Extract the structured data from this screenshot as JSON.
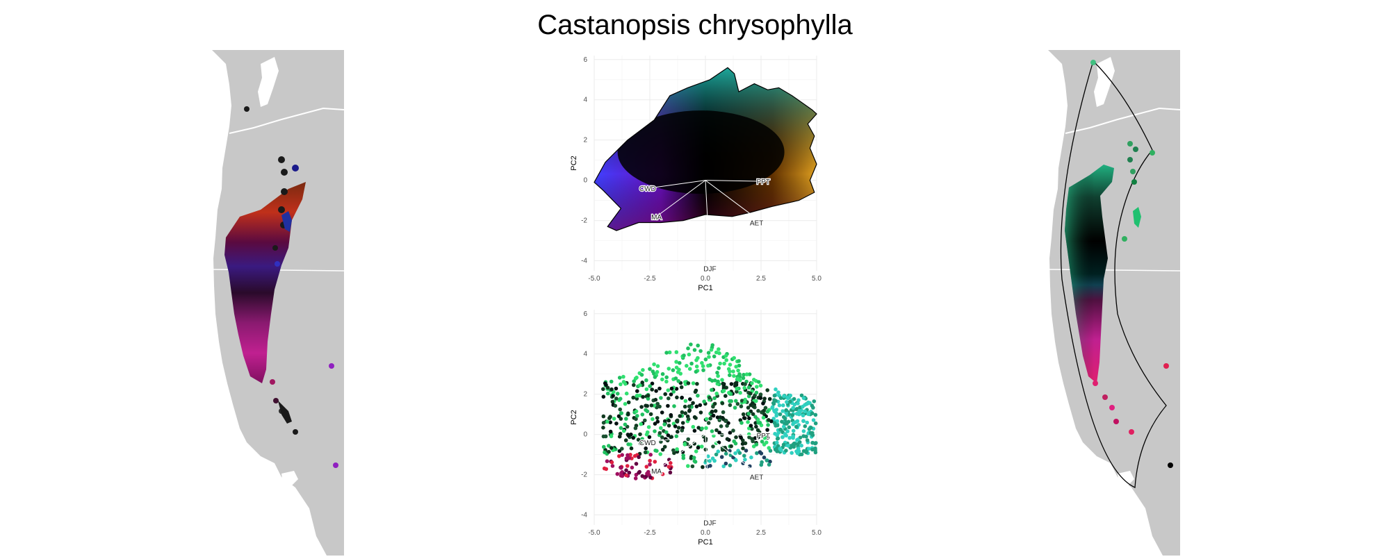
{
  "title": "Castanopsis chrysophylla",
  "colors": {
    "background": "#ffffff",
    "land": "#c8c8c8",
    "water": "#ffffff",
    "grid": "#ebebeb",
    "axis_text": "#4d4d4d",
    "vector": "#ffffff"
  },
  "chart_data": [
    {
      "type": "scatter",
      "panel": "pca-top",
      "xlabel": "PC1",
      "ylabel": "PC2",
      "xlim": [
        -5.0,
        5.0
      ],
      "ylim": [
        -4.5,
        6.2
      ],
      "x_ticks": [
        "-5.0",
        "-2.5",
        "0.0",
        "2.5",
        "5.0"
      ],
      "y_ticks": [
        "-4",
        "-2",
        "0",
        "2",
        "4",
        "6"
      ],
      "grid": true,
      "coloring": "continuous climate colour wheel",
      "vectors": [
        {
          "label": "PPT",
          "x": 2.6,
          "y": -0.05
        },
        {
          "label": "CWD",
          "x": -2.6,
          "y": -0.4
        },
        {
          "label": "MA",
          "x": -2.2,
          "y": -1.8
        },
        {
          "label": "AET",
          "x": 2.3,
          "y": -1.9
        },
        {
          "label": "DJF",
          "x": 0.2,
          "y": -4.1
        }
      ],
      "hull": [
        [
          -5.0,
          -0.1
        ],
        [
          -4.5,
          0.9
        ],
        [
          -3.5,
          2.0
        ],
        [
          -2.3,
          3.0
        ],
        [
          -1.6,
          4.2
        ],
        [
          -0.8,
          4.6
        ],
        [
          0.2,
          5.0
        ],
        [
          1.0,
          5.6
        ],
        [
          1.3,
          5.3
        ],
        [
          1.5,
          4.4
        ],
        [
          2.2,
          4.8
        ],
        [
          2.8,
          4.5
        ],
        [
          3.3,
          4.6
        ],
        [
          3.9,
          4.2
        ],
        [
          4.8,
          3.5
        ],
        [
          5.0,
          3.3
        ],
        [
          4.6,
          2.8
        ],
        [
          4.9,
          2.2
        ],
        [
          4.7,
          1.6
        ],
        [
          5.0,
          0.8
        ],
        [
          4.7,
          0.0
        ],
        [
          4.9,
          -0.6
        ],
        [
          4.2,
          -1.0
        ],
        [
          3.0,
          -1.3
        ],
        [
          2.0,
          -1.6
        ],
        [
          1.2,
          -1.8
        ],
        [
          0.0,
          -1.7
        ],
        [
          -1.0,
          -2.0
        ],
        [
          -2.0,
          -2.1
        ],
        [
          -3.0,
          -2.1
        ],
        [
          -4.0,
          -2.5
        ],
        [
          -4.4,
          -2.3
        ],
        [
          -3.8,
          -1.4
        ],
        [
          -4.6,
          -0.5
        ]
      ]
    },
    {
      "type": "scatter",
      "panel": "pca-bottom",
      "xlabel": "PC1",
      "ylabel": "PC2",
      "xlim": [
        -5.0,
        5.0
      ],
      "ylim": [
        -4.5,
        6.2
      ],
      "x_ticks": [
        "-5.0",
        "-2.5",
        "0.0",
        "2.5",
        "5.0"
      ],
      "y_ticks": [
        "-4",
        "-2",
        "0",
        "2",
        "4",
        "6"
      ],
      "grid": true,
      "coloring": "sampled occurrence points coloured by projected climate",
      "vectors": [
        {
          "label": "PPT",
          "x": 2.6,
          "y": -0.05
        },
        {
          "label": "CWD",
          "x": -2.6,
          "y": -0.4
        },
        {
          "label": "MA",
          "x": -2.2,
          "y": -1.8
        },
        {
          "label": "AET",
          "x": 2.3,
          "y": -1.9
        },
        {
          "label": "DJF",
          "x": 0.2,
          "y": -4.1
        }
      ]
    }
  ],
  "maps": {
    "left": {
      "name": "observed range colored by climate"
    },
    "right": {
      "name": "modeled range colored by climate with hull boundary"
    }
  }
}
